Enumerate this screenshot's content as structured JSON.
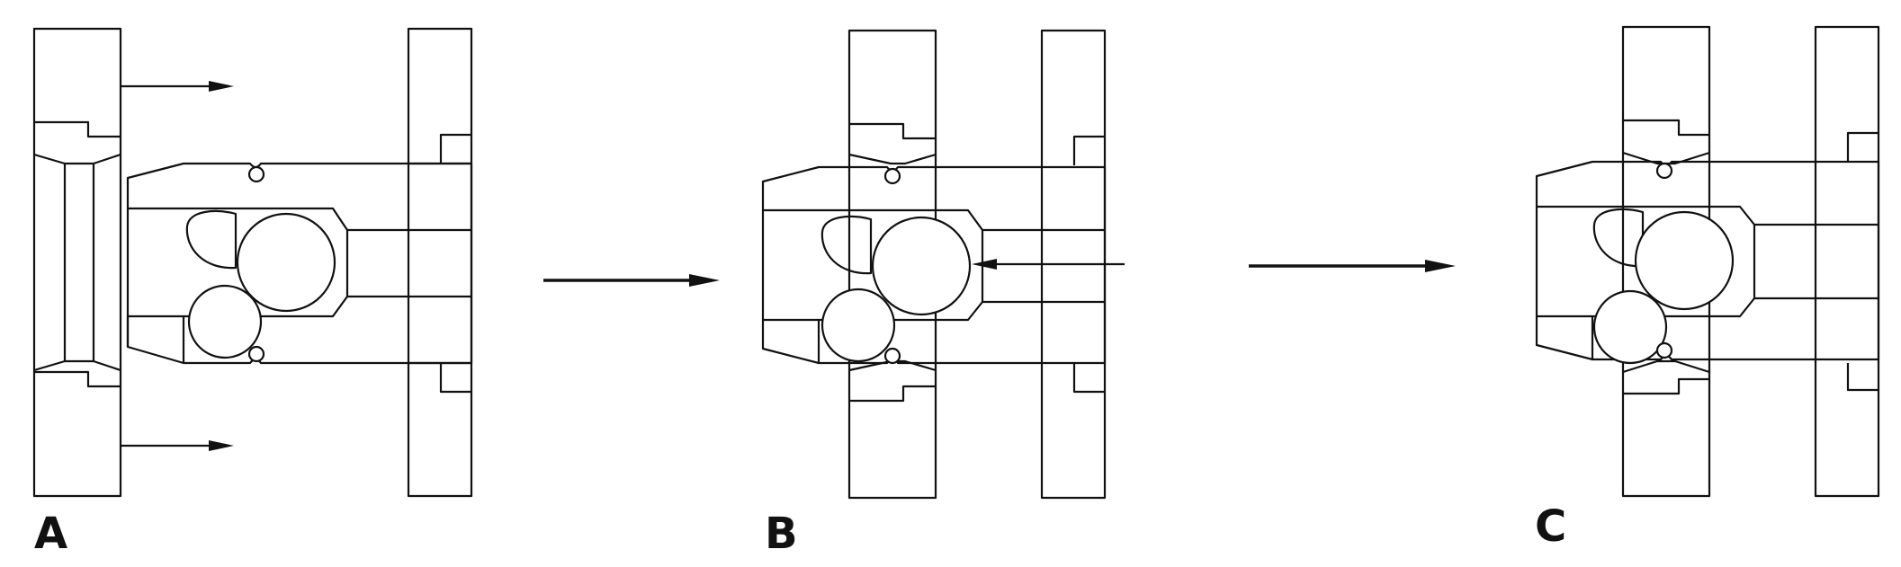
{
  "figure": {
    "stages": [
      {
        "id": "a",
        "label": "A"
      },
      {
        "id": "b",
        "label": "B"
      },
      {
        "id": "c",
        "label": "C"
      }
    ]
  },
  "colors": {
    "line": "#111111",
    "background": "#ffffff"
  }
}
